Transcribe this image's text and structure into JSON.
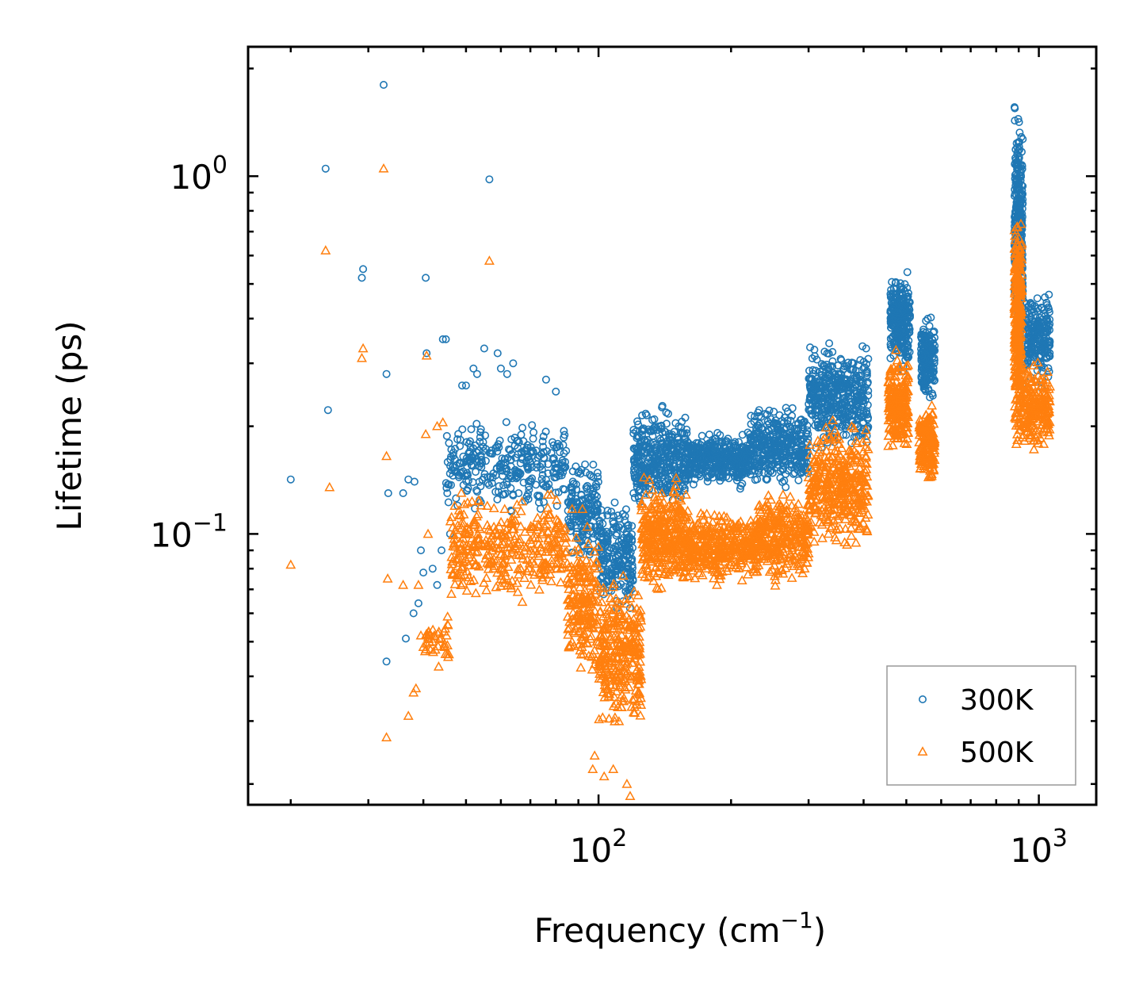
{
  "chart_data": {
    "type": "scatter",
    "title": "",
    "xlabel": "Frequency (cm",
    "xlabel_superscript": "−1",
    "xlabel_suffix": ")",
    "ylabel": "Lifetime (ps)",
    "xscale": "log",
    "yscale": "log",
    "xlim": [
      16,
      1350
    ],
    "ylim": [
      0.0175,
      2.3
    ],
    "x_ticks": [
      {
        "value": 100,
        "base": "10",
        "exp": "2"
      },
      {
        "value": 1000,
        "base": "10",
        "exp": "3"
      }
    ],
    "y_ticks": [
      {
        "value": 0.1,
        "base": "10",
        "exp": "−1"
      },
      {
        "value": 1,
        "base": "10",
        "exp": "0"
      }
    ],
    "legend_position": "bottom-right",
    "series": [
      {
        "name": "300K",
        "color": "#1f77b4",
        "marker": "circle-open",
        "points": [
          [
            20,
            0.142
          ],
          [
            24,
            1.05
          ],
          [
            24.3,
            0.222
          ],
          [
            29,
            0.52
          ],
          [
            29.2,
            0.55
          ],
          [
            32.5,
            1.8
          ],
          [
            33,
            0.28
          ],
          [
            33.3,
            0.13
          ],
          [
            33,
            0.044
          ],
          [
            36,
            0.13
          ],
          [
            36.5,
            0.051
          ],
          [
            37,
            0.142
          ],
          [
            38,
            0.06
          ],
          [
            38.2,
            0.14
          ],
          [
            39,
            0.064
          ],
          [
            39.5,
            0.09
          ],
          [
            40,
            0.078
          ],
          [
            40.5,
            0.52
          ],
          [
            40.7,
            0.32
          ],
          [
            42,
            0.08
          ],
          [
            43,
            0.072
          ],
          [
            44,
            0.09
          ],
          [
            44.3,
            0.35
          ],
          [
            45,
            0.35
          ],
          [
            46,
            0.1
          ],
          [
            47,
            0.15
          ],
          [
            49,
            0.26
          ],
          [
            50,
            0.26
          ],
          [
            52,
            0.29
          ],
          [
            53,
            0.28
          ],
          [
            55,
            0.33
          ],
          [
            56.5,
            0.98
          ],
          [
            59,
            0.32
          ],
          [
            60,
            0.29
          ],
          [
            62,
            0.28
          ],
          [
            64,
            0.3
          ],
          [
            76,
            0.27
          ],
          [
            80,
            0.25
          ]
        ],
        "clusters": [
          {
            "x_from": 45,
            "x_to": 85,
            "y_low": 0.11,
            "y_high": 0.22,
            "n": 320
          },
          {
            "x_from": 85,
            "x_to": 100,
            "y_low": 0.08,
            "y_high": 0.17,
            "n": 160
          },
          {
            "x_from": 100,
            "x_to": 120,
            "y_low": 0.055,
            "y_high": 0.13,
            "n": 220
          },
          {
            "x_from": 120,
            "x_to": 160,
            "y_low": 0.11,
            "y_high": 0.24,
            "n": 380
          },
          {
            "x_from": 160,
            "x_to": 220,
            "y_low": 0.13,
            "y_high": 0.2,
            "n": 380
          },
          {
            "x_from": 220,
            "x_to": 300,
            "y_low": 0.13,
            "y_high": 0.24,
            "n": 380
          },
          {
            "x_from": 300,
            "x_to": 410,
            "y_low": 0.16,
            "y_high": 0.36,
            "n": 420
          },
          {
            "x_from": 460,
            "x_to": 510,
            "y_low": 0.27,
            "y_high": 0.58,
            "n": 260
          },
          {
            "x_from": 540,
            "x_to": 580,
            "y_low": 0.22,
            "y_high": 0.42,
            "n": 200
          },
          {
            "x_from": 880,
            "x_to": 920,
            "y_low": 0.3,
            "y_high": 1.75,
            "n": 320
          },
          {
            "x_from": 920,
            "x_to": 1060,
            "y_low": 0.25,
            "y_high": 0.5,
            "n": 220
          }
        ]
      },
      {
        "name": "500K",
        "color": "#ff7f0e",
        "marker": "triangle-open",
        "points": [
          [
            20,
            0.082
          ],
          [
            24,
            0.62
          ],
          [
            24.5,
            0.135
          ],
          [
            29,
            0.31
          ],
          [
            29.2,
            0.33
          ],
          [
            32.5,
            1.05
          ],
          [
            33,
            0.165
          ],
          [
            33.2,
            0.075
          ],
          [
            33,
            0.027
          ],
          [
            36,
            0.072
          ],
          [
            37,
            0.031
          ],
          [
            38,
            0.036
          ],
          [
            38.5,
            0.037
          ],
          [
            39,
            0.072
          ],
          [
            39.5,
            0.052
          ],
          [
            40.5,
            0.19
          ],
          [
            40.7,
            0.315
          ],
          [
            41,
            0.1
          ],
          [
            43,
            0.2
          ],
          [
            44.3,
            0.205
          ],
          [
            56.5,
            0.58
          ],
          [
            97,
            0.022
          ],
          [
            98,
            0.024
          ],
          [
            103,
            0.021
          ],
          [
            108,
            0.022
          ],
          [
            116,
            0.02
          ],
          [
            118,
            0.0185
          ]
        ],
        "clusters": [
          {
            "x_from": 40,
            "x_to": 46,
            "y_low": 0.042,
            "y_high": 0.06,
            "n": 40
          },
          {
            "x_from": 46,
            "x_to": 85,
            "y_low": 0.06,
            "y_high": 0.14,
            "n": 360
          },
          {
            "x_from": 85,
            "x_to": 100,
            "y_low": 0.035,
            "y_high": 0.12,
            "n": 200
          },
          {
            "x_from": 100,
            "x_to": 125,
            "y_low": 0.026,
            "y_high": 0.085,
            "n": 300
          },
          {
            "x_from": 125,
            "x_to": 160,
            "y_low": 0.065,
            "y_high": 0.15,
            "n": 360
          },
          {
            "x_from": 160,
            "x_to": 230,
            "y_low": 0.07,
            "y_high": 0.12,
            "n": 380
          },
          {
            "x_from": 230,
            "x_to": 300,
            "y_low": 0.07,
            "y_high": 0.14,
            "n": 300
          },
          {
            "x_from": 300,
            "x_to": 410,
            "y_low": 0.085,
            "y_high": 0.22,
            "n": 380
          },
          {
            "x_from": 455,
            "x_to": 505,
            "y_low": 0.155,
            "y_high": 0.34,
            "n": 220
          },
          {
            "x_from": 535,
            "x_to": 580,
            "y_low": 0.135,
            "y_high": 0.24,
            "n": 180
          },
          {
            "x_from": 880,
            "x_to": 915,
            "y_low": 0.15,
            "y_high": 0.95,
            "n": 300
          },
          {
            "x_from": 915,
            "x_to": 1060,
            "y_low": 0.16,
            "y_high": 0.32,
            "n": 200
          }
        ]
      }
    ]
  }
}
